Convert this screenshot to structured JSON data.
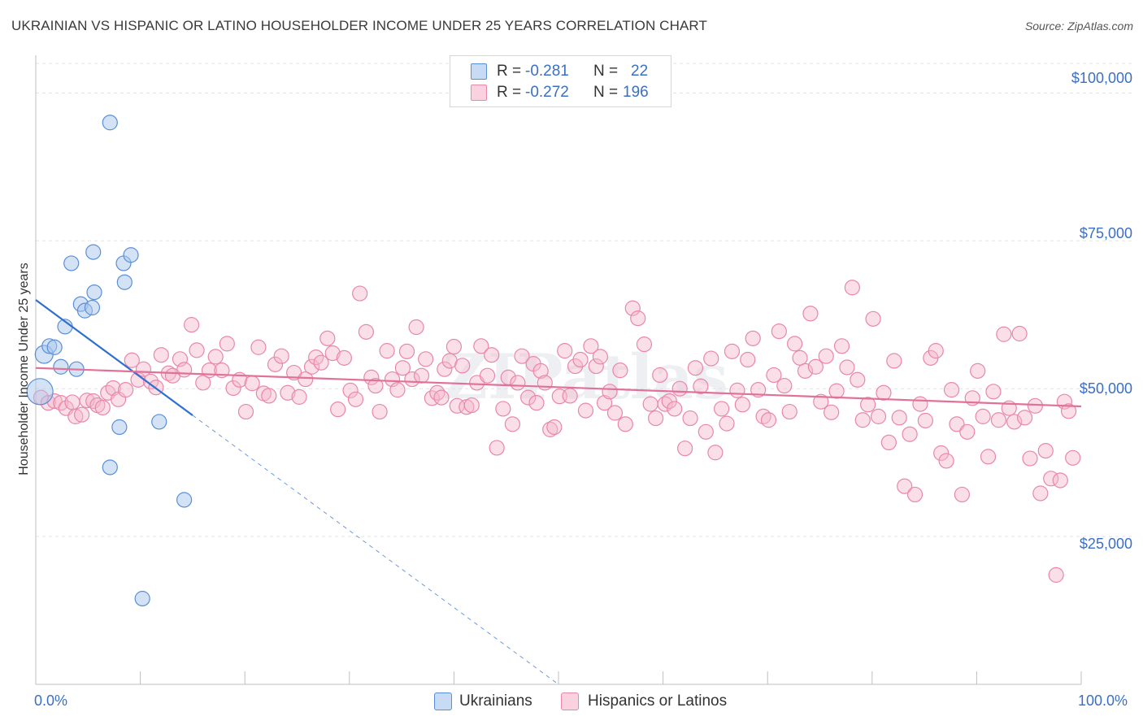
{
  "title": "UKRAINIAN VS HISPANIC OR LATINO HOUSEHOLDER INCOME UNDER 25 YEARS CORRELATION CHART",
  "source": "Source: ZipAtlas.com",
  "watermark": "ZIPatlas",
  "legend_top": {
    "rows": [
      {
        "r_label": "R =",
        "r_value": "-0.281",
        "n_label": "N =",
        "n_value": "22",
        "color": "#a9c6ec"
      },
      {
        "r_label": "R =",
        "r_value": "-0.272",
        "n_label": "N =",
        "n_value": "196",
        "color": "#f5b9cc"
      }
    ]
  },
  "legend_bottom": {
    "items": [
      {
        "label": "Ukrainians",
        "color": "#a9c6ec"
      },
      {
        "label": "Hispanics or Latinos",
        "color": "#f5b9cc"
      }
    ]
  },
  "colors": {
    "ukrainian_fill": "#a9c6ec",
    "ukrainian_stroke": "#5a8fd6",
    "ukrainian_line": "#2f6fd0",
    "hispanic_fill": "#f5b9cc",
    "hispanic_stroke": "#e987a8",
    "hispanic_line": "#e0729a",
    "tick_text": "#3b6fc4"
  },
  "chart_data": {
    "type": "scatter",
    "title": "UKRAINIAN VS HISPANIC OR LATINO HOUSEHOLDER INCOME UNDER 25 YEARS CORRELATION CHART",
    "xlabel": "",
    "ylabel": "Householder Income Under 25 years",
    "xlim": [
      0,
      100
    ],
    "ylim": [
      0,
      105000
    ],
    "x_tick_labels": [
      "0.0%",
      "100.0%"
    ],
    "y_ticks": [
      25000,
      50000,
      75000,
      100000
    ],
    "y_tick_labels": [
      "$25,000",
      "$50,000",
      "$75,000",
      "$100,000"
    ],
    "grid": true,
    "legend_position": "top-center",
    "series": [
      {
        "name": "Ukrainians",
        "r": -0.281,
        "n": 22,
        "trend": {
          "x0": 0,
          "y0": 65000,
          "x1": 15,
          "y1": 45500,
          "dash_to_x": 50,
          "dash_to_y": 0
        },
        "points": [
          [
            0.4,
            49500
          ],
          [
            0.8,
            55800
          ],
          [
            1.3,
            57200
          ],
          [
            1.8,
            57000
          ],
          [
            2.4,
            53700
          ],
          [
            2.8,
            60500
          ],
          [
            3.4,
            71200
          ],
          [
            3.9,
            53300
          ],
          [
            4.3,
            64300
          ],
          [
            4.7,
            63200
          ],
          [
            5.4,
            63700
          ],
          [
            5.6,
            66300
          ],
          [
            5.5,
            73100
          ],
          [
            7.1,
            95000
          ],
          [
            7.1,
            36700
          ],
          [
            8.0,
            43500
          ],
          [
            8.5,
            68000
          ],
          [
            8.4,
            71200
          ],
          [
            9.1,
            72600
          ],
          [
            10.2,
            14500
          ],
          [
            11.8,
            44400
          ],
          [
            14.2,
            31200
          ]
        ]
      },
      {
        "name": "Hispanics or Latinos",
        "r": -0.272,
        "n": 196,
        "trend": {
          "x0": 0,
          "y0": 53500,
          "x1": 100,
          "y1": 47000
        },
        "points": [
          [
            0.5,
            48500
          ],
          [
            1.2,
            47600
          ],
          [
            1.8,
            47900
          ],
          [
            2.4,
            47600
          ],
          [
            2.9,
            46700
          ],
          [
            3.5,
            47700
          ],
          [
            3.8,
            45300
          ],
          [
            4.4,
            45600
          ],
          [
            4.9,
            48000
          ],
          [
            5.5,
            47900
          ],
          [
            5.9,
            47200
          ],
          [
            6.4,
            46800
          ],
          [
            6.9,
            49300
          ],
          [
            7.4,
            50100
          ],
          [
            7.9,
            48200
          ],
          [
            8.6,
            49800
          ],
          [
            9.2,
            54800
          ],
          [
            9.8,
            51500
          ],
          [
            10.3,
            53300
          ],
          [
            11.0,
            51200
          ],
          [
            11.5,
            50200
          ],
          [
            12.0,
            55700
          ],
          [
            12.7,
            52600
          ],
          [
            13.1,
            52200
          ],
          [
            13.8,
            55000
          ],
          [
            14.2,
            53200
          ],
          [
            14.9,
            60800
          ],
          [
            15.4,
            56500
          ],
          [
            16.0,
            51000
          ],
          [
            16.6,
            53100
          ],
          [
            17.2,
            55400
          ],
          [
            17.8,
            53100
          ],
          [
            18.3,
            57600
          ],
          [
            18.9,
            50100
          ],
          [
            19.5,
            51500
          ],
          [
            20.1,
            46100
          ],
          [
            20.7,
            50900
          ],
          [
            21.3,
            57000
          ],
          [
            21.8,
            49200
          ],
          [
            22.3,
            48800
          ],
          [
            22.9,
            54100
          ],
          [
            23.5,
            55500
          ],
          [
            24.1,
            49300
          ],
          [
            24.7,
            52700
          ],
          [
            25.2,
            48600
          ],
          [
            25.8,
            51600
          ],
          [
            26.4,
            53700
          ],
          [
            26.8,
            55300
          ],
          [
            27.3,
            54400
          ],
          [
            27.9,
            58500
          ],
          [
            28.4,
            56000
          ],
          [
            28.9,
            46500
          ],
          [
            29.5,
            55200
          ],
          [
            30.1,
            49700
          ],
          [
            30.6,
            48200
          ],
          [
            31.0,
            66100
          ],
          [
            31.6,
            59600
          ],
          [
            32.1,
            51900
          ],
          [
            32.5,
            50500
          ],
          [
            32.9,
            46100
          ],
          [
            33.6,
            56400
          ],
          [
            34.1,
            51600
          ],
          [
            34.6,
            49800
          ],
          [
            35.1,
            53500
          ],
          [
            35.5,
            56300
          ],
          [
            36.0,
            51600
          ],
          [
            36.4,
            60400
          ],
          [
            36.9,
            52200
          ],
          [
            37.3,
            55000
          ],
          [
            37.9,
            48400
          ],
          [
            38.4,
            49300
          ],
          [
            38.8,
            48500
          ],
          [
            39.1,
            53300
          ],
          [
            39.6,
            54700
          ],
          [
            40.0,
            57100
          ],
          [
            40.3,
            47100
          ],
          [
            40.8,
            53900
          ],
          [
            41.2,
            46900
          ],
          [
            41.7,
            47200
          ],
          [
            42.2,
            51000
          ],
          [
            42.6,
            57200
          ],
          [
            43.2,
            52200
          ],
          [
            43.6,
            55700
          ],
          [
            44.1,
            40000
          ],
          [
            44.7,
            46600
          ],
          [
            45.2,
            51900
          ],
          [
            45.6,
            44000
          ],
          [
            46.1,
            51000
          ],
          [
            46.5,
            55500
          ],
          [
            47.1,
            48500
          ],
          [
            47.6,
            54200
          ],
          [
            47.9,
            47600
          ],
          [
            48.3,
            53000
          ],
          [
            48.7,
            51000
          ],
          [
            49.2,
            43100
          ],
          [
            49.6,
            43500
          ],
          [
            50.1,
            48700
          ],
          [
            50.6,
            56400
          ],
          [
            51.1,
            48800
          ],
          [
            51.6,
            53800
          ],
          [
            52.1,
            54900
          ],
          [
            52.6,
            46300
          ],
          [
            53.1,
            57200
          ],
          [
            53.6,
            53800
          ],
          [
            54.0,
            55400
          ],
          [
            54.4,
            47600
          ],
          [
            54.9,
            49500
          ],
          [
            55.4,
            45900
          ],
          [
            55.9,
            53100
          ],
          [
            56.4,
            44000
          ],
          [
            57.1,
            63600
          ],
          [
            57.6,
            61900
          ],
          [
            58.2,
            57500
          ],
          [
            58.8,
            47400
          ],
          [
            59.3,
            45000
          ],
          [
            59.7,
            52300
          ],
          [
            60.2,
            47400
          ],
          [
            60.6,
            47900
          ],
          [
            61.1,
            46600
          ],
          [
            61.6,
            50000
          ],
          [
            62.1,
            39900
          ],
          [
            62.6,
            45000
          ],
          [
            63.1,
            53500
          ],
          [
            63.6,
            50400
          ],
          [
            64.1,
            42700
          ],
          [
            64.6,
            55100
          ],
          [
            65.0,
            39200
          ],
          [
            65.6,
            46600
          ],
          [
            66.1,
            44100
          ],
          [
            66.6,
            56300
          ],
          [
            67.1,
            49700
          ],
          [
            67.6,
            47300
          ],
          [
            68.1,
            54900
          ],
          [
            68.6,
            58500
          ],
          [
            69.1,
            49800
          ],
          [
            69.6,
            45300
          ],
          [
            70.1,
            44700
          ],
          [
            70.6,
            52300
          ],
          [
            71.1,
            59700
          ],
          [
            71.6,
            50500
          ],
          [
            72.1,
            46100
          ],
          [
            72.6,
            57600
          ],
          [
            73.1,
            55200
          ],
          [
            73.6,
            53000
          ],
          [
            74.1,
            62700
          ],
          [
            74.6,
            53700
          ],
          [
            75.1,
            47800
          ],
          [
            75.6,
            55500
          ],
          [
            76.1,
            46000
          ],
          [
            76.6,
            49600
          ],
          [
            77.1,
            57200
          ],
          [
            77.6,
            53600
          ],
          [
            78.1,
            67100
          ],
          [
            78.6,
            51500
          ],
          [
            79.1,
            44700
          ],
          [
            79.6,
            47300
          ],
          [
            80.1,
            61800
          ],
          [
            80.6,
            45300
          ],
          [
            81.1,
            49300
          ],
          [
            81.6,
            40900
          ],
          [
            82.1,
            54700
          ],
          [
            82.6,
            45100
          ],
          [
            83.1,
            33500
          ],
          [
            83.6,
            42300
          ],
          [
            84.1,
            32100
          ],
          [
            84.6,
            47400
          ],
          [
            85.1,
            44600
          ],
          [
            85.6,
            55200
          ],
          [
            86.1,
            56400
          ],
          [
            86.6,
            39100
          ],
          [
            87.1,
            37800
          ],
          [
            87.6,
            49800
          ],
          [
            88.1,
            44000
          ],
          [
            88.6,
            32100
          ],
          [
            89.1,
            42700
          ],
          [
            89.6,
            48400
          ],
          [
            90.1,
            53000
          ],
          [
            90.6,
            45300
          ],
          [
            91.1,
            38500
          ],
          [
            91.6,
            49500
          ],
          [
            92.1,
            44700
          ],
          [
            92.6,
            59200
          ],
          [
            93.1,
            46700
          ],
          [
            93.6,
            44400
          ],
          [
            94.1,
            59300
          ],
          [
            94.6,
            45100
          ],
          [
            95.1,
            38200
          ],
          [
            95.6,
            47100
          ],
          [
            96.1,
            32300
          ],
          [
            96.6,
            39500
          ],
          [
            97.1,
            34800
          ],
          [
            97.6,
            18500
          ],
          [
            98.0,
            34500
          ],
          [
            98.4,
            47800
          ],
          [
            98.8,
            46200
          ],
          [
            99.2,
            38300
          ]
        ]
      }
    ]
  }
}
